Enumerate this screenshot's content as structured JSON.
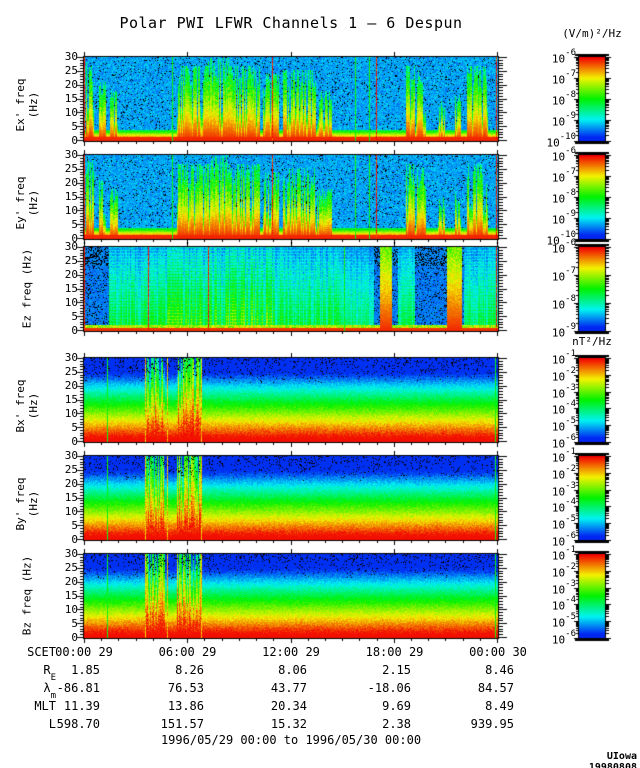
{
  "page": {
    "credit": "UIowa 19980808"
  },
  "chart_data": {
    "type": "heatmap",
    "title": "Polar PWI LFWR Channels 1 — 6 Despun",
    "date_range": "1996/05/29 00:00 to 1996/05/30 00:00",
    "x_axis": {
      "prefix": "SCET",
      "ticks": [
        "00:00 29",
        "06:00 29",
        "12:00 29",
        "18:00 29",
        "00:00 30"
      ],
      "span_hours": 24
    },
    "y_axis": {
      "unit": "Hz",
      "ylim": [
        0,
        30
      ],
      "ticks": [
        30,
        25,
        20,
        15,
        10,
        5,
        0
      ]
    },
    "colorbar_units": {
      "electric": "(V/m)²/Hz",
      "magnetic": "nT²/Hz"
    },
    "legend_position": "right",
    "note": "Six stacked frequency-time spectrograms, 0-30 Hz over 24 h. Electric channels Ex',Ey',Ez show broadband bursty emissions (log power 1e-6..1e-10 (V/m)2/Hz); magnetic channels Bx',By',Bz show a strong low-frequency band below ~8 Hz with bursts near 04:00-07:00 (log power 1e-1..1e-6 nT2/Hz). Burst intervals below are fractions of the 24 h window.",
    "panels": [
      {
        "id": "ex",
        "ylabel": "Ex' freq (Hz)",
        "field": "electric",
        "colorbar_exponents": [
          "-6",
          "-7",
          "-8",
          "-9",
          "-10"
        ],
        "render": {
          "kind": "E",
          "seed": 11,
          "bursts": [
            {
              "from": 0.004,
              "to": 0.022,
              "i": 0.95
            },
            {
              "from": 0.034,
              "to": 0.052,
              "i": 0.7
            },
            {
              "from": 0.062,
              "to": 0.082,
              "i": 0.6
            },
            {
              "from": 0.225,
              "to": 0.3,
              "i": 0.9
            },
            {
              "from": 0.3,
              "to": 0.35,
              "i": 1.0
            },
            {
              "from": 0.35,
              "to": 0.425,
              "i": 0.9
            },
            {
              "from": 0.432,
              "to": 0.47,
              "i": 0.8
            },
            {
              "from": 0.48,
              "to": 0.56,
              "i": 0.85
            },
            {
              "from": 0.562,
              "to": 0.6,
              "i": 0.6
            },
            {
              "from": 0.778,
              "to": 0.8,
              "i": 0.9
            },
            {
              "from": 0.802,
              "to": 0.828,
              "i": 0.85
            },
            {
              "from": 0.856,
              "to": 0.872,
              "i": 0.5
            },
            {
              "from": 0.896,
              "to": 0.912,
              "i": 0.55
            },
            {
              "from": 0.926,
              "to": 0.978,
              "i": 0.9
            }
          ],
          "lines": [
            {
              "pos": 0.001,
              "c": "red"
            },
            {
              "pos": 0.212,
              "c": "green"
            },
            {
              "pos": 0.455,
              "c": "red"
            },
            {
              "pos": 0.655,
              "c": "green"
            },
            {
              "pos": 0.69,
              "c": "green"
            },
            {
              "pos": 0.706,
              "c": "red"
            },
            {
              "pos": 0.997,
              "c": "red"
            }
          ]
        }
      },
      {
        "id": "ey",
        "ylabel": "Ey' freq (Hz)",
        "field": "electric",
        "colorbar_exponents": [
          "-6",
          "-7",
          "-8",
          "-9",
          "-10"
        ],
        "render": {
          "kind": "E",
          "seed": 29,
          "bursts": [
            {
              "from": 0.004,
              "to": 0.022,
              "i": 0.95
            },
            {
              "from": 0.034,
              "to": 0.052,
              "i": 0.7
            },
            {
              "from": 0.062,
              "to": 0.082,
              "i": 0.6
            },
            {
              "from": 0.225,
              "to": 0.3,
              "i": 0.9
            },
            {
              "from": 0.3,
              "to": 0.35,
              "i": 1.0
            },
            {
              "from": 0.35,
              "to": 0.425,
              "i": 0.9
            },
            {
              "from": 0.432,
              "to": 0.47,
              "i": 0.8
            },
            {
              "from": 0.48,
              "to": 0.56,
              "i": 0.85
            },
            {
              "from": 0.562,
              "to": 0.6,
              "i": 0.6
            },
            {
              "from": 0.778,
              "to": 0.8,
              "i": 0.9
            },
            {
              "from": 0.802,
              "to": 0.828,
              "i": 0.85
            },
            {
              "from": 0.856,
              "to": 0.872,
              "i": 0.5
            },
            {
              "from": 0.896,
              "to": 0.912,
              "i": 0.55
            },
            {
              "from": 0.926,
              "to": 0.978,
              "i": 0.9
            }
          ],
          "lines": [
            {
              "pos": 0.001,
              "c": "red"
            },
            {
              "pos": 0.212,
              "c": "green"
            },
            {
              "pos": 0.455,
              "c": "red"
            },
            {
              "pos": 0.655,
              "c": "green"
            },
            {
              "pos": 0.69,
              "c": "green"
            },
            {
              "pos": 0.706,
              "c": "red"
            },
            {
              "pos": 0.997,
              "c": "red"
            }
          ]
        }
      },
      {
        "id": "ez",
        "ylabel": "Ez freq (Hz)",
        "field": "electric",
        "colorbar_exponents": [
          "-6",
          "-7",
          "-8",
          "-9"
        ],
        "render": {
          "kind": "Ez",
          "seed": 47,
          "activity": [
            {
              "from": 0.06,
              "to": 0.2,
              "i": 0.55
            },
            {
              "from": 0.2,
              "to": 0.34,
              "i": 0.8
            },
            {
              "from": 0.34,
              "to": 0.46,
              "i": 0.85
            },
            {
              "from": 0.46,
              "to": 0.62,
              "i": 0.55
            },
            {
              "from": 0.62,
              "to": 0.7,
              "i": 0.35
            },
            {
              "from": 0.76,
              "to": 0.8,
              "i": 0.5
            },
            {
              "from": 0.92,
              "to": 1.0,
              "i": 0.5
            }
          ],
          "strong": [
            {
              "from": 0.715,
              "to": 0.745,
              "i": 1.0
            },
            {
              "from": 0.878,
              "to": 0.915,
              "i": 0.95
            }
          ],
          "lines": [
            {
              "pos": 0.001,
              "c": "red"
            },
            {
              "pos": 0.155,
              "c": "red"
            },
            {
              "pos": 0.3,
              "c": "red"
            },
            {
              "pos": 0.63,
              "c": "green"
            },
            {
              "pos": 0.997,
              "c": "red"
            }
          ]
        }
      },
      {
        "id": "bx",
        "ylabel": "Bx' freq (Hz)",
        "field": "magnetic",
        "colorbar_exponents": [
          "-1",
          "-2",
          "-3",
          "-4",
          "-5",
          "-6"
        ],
        "render": {
          "kind": "B",
          "seed": 63,
          "bursts": [
            {
              "from": 0.15,
              "to": 0.196,
              "i": 0.95
            },
            {
              "from": 0.225,
              "to": 0.282,
              "i": 1.0
            }
          ],
          "lines": [
            {
              "pos": 0.055,
              "c": "green"
            },
            {
              "pos": 0.148,
              "c": "yellow"
            },
            {
              "pos": 0.2,
              "c": "yellow"
            },
            {
              "pos": 0.284,
              "c": "yellow"
            },
            {
              "pos": 0.995,
              "c": "green"
            }
          ]
        }
      },
      {
        "id": "by",
        "ylabel": "By' freq (Hz)",
        "field": "magnetic",
        "colorbar_exponents": [
          "-1",
          "-2",
          "-3",
          "-4",
          "-5",
          "-6"
        ],
        "render": {
          "kind": "B",
          "seed": 77,
          "bursts": [
            {
              "from": 0.15,
              "to": 0.196,
              "i": 0.95
            },
            {
              "from": 0.225,
              "to": 0.282,
              "i": 1.0
            }
          ],
          "lines": [
            {
              "pos": 0.055,
              "c": "green"
            },
            {
              "pos": 0.148,
              "c": "yellow"
            },
            {
              "pos": 0.2,
              "c": "yellow"
            },
            {
              "pos": 0.284,
              "c": "yellow"
            },
            {
              "pos": 0.995,
              "c": "green"
            }
          ]
        }
      },
      {
        "id": "bz",
        "ylabel": "Bz freq (Hz)",
        "field": "magnetic",
        "colorbar_exponents": [
          "-1",
          "-2",
          "-3",
          "-4",
          "-5",
          "-6"
        ],
        "render": {
          "kind": "B",
          "seed": 91,
          "bursts": [
            {
              "from": 0.15,
              "to": 0.196,
              "i": 0.95
            },
            {
              "from": 0.225,
              "to": 0.282,
              "i": 1.0
            }
          ],
          "lines": [
            {
              "pos": 0.055,
              "c": "green"
            },
            {
              "pos": 0.148,
              "c": "yellow"
            },
            {
              "pos": 0.2,
              "c": "yellow"
            },
            {
              "pos": 0.284,
              "c": "yellow"
            },
            {
              "pos": 0.995,
              "c": "green"
            }
          ]
        }
      }
    ],
    "ephemeris": {
      "rows": [
        {
          "label": "R",
          "sub": "E",
          "values": [
            "1.85",
            "8.26",
            "8.06",
            "2.15",
            "8.46"
          ]
        },
        {
          "label": "λ",
          "sub": "m",
          "values": [
            "-86.81",
            "76.53",
            "43.77",
            "-18.06",
            "84.57"
          ]
        },
        {
          "label": "MLT",
          "sub": "",
          "values": [
            "11.39",
            "13.86",
            "20.34",
            "9.69",
            "8.49"
          ]
        },
        {
          "label": "L",
          "sub": "",
          "values": [
            "598.70",
            "151.57",
            "15.32",
            "2.38",
            "939.95"
          ]
        }
      ]
    }
  }
}
